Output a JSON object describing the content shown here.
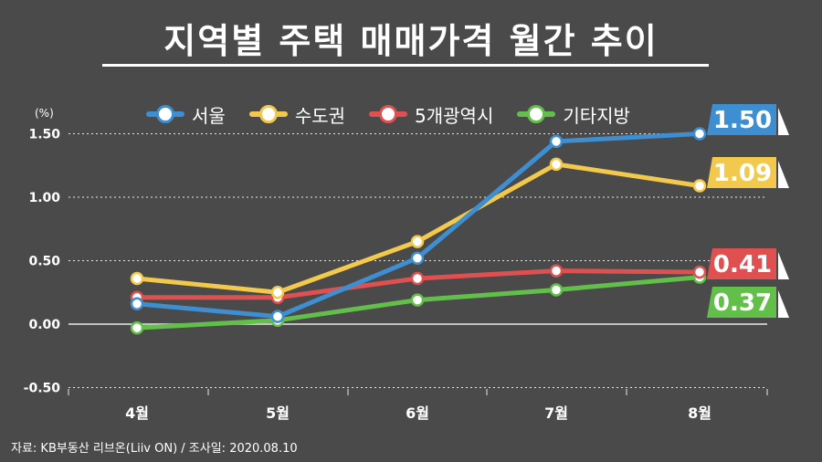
{
  "title": "지역별 주택 매매가격 월간 추이",
  "source": "자료: KB부동산 리브온(Liiv ON)  / 조사일: 2020.08.10",
  "chart_data": {
    "type": "line",
    "title": "지역별 주택 매매가격 월간 추이",
    "unit_label": "(%)",
    "categories": [
      "4월",
      "5월",
      "6월",
      "7월",
      "8월"
    ],
    "ylim": [
      -0.5,
      1.5
    ],
    "yticks": [
      "1.50",
      "1.00",
      "0.50",
      "0.00",
      "-0.50"
    ],
    "ytick_values": [
      1.5,
      1.0,
      0.5,
      0.0,
      -0.5
    ],
    "grid": true,
    "legend_position": "top",
    "series": [
      {
        "name": "서울",
        "color": "#3d8fd1",
        "values": [
          0.16,
          0.06,
          0.52,
          1.44,
          1.5
        ],
        "end_label": "1.50"
      },
      {
        "name": "수도권",
        "color": "#f2c94c",
        "values": [
          0.36,
          0.25,
          0.65,
          1.26,
          1.09
        ],
        "end_label": "1.09"
      },
      {
        "name": "5개광역시",
        "color": "#e05050",
        "values": [
          0.21,
          0.21,
          0.36,
          0.42,
          0.41
        ],
        "end_label": "0.41"
      },
      {
        "name": "기타지방",
        "color": "#62c04a",
        "values": [
          -0.03,
          0.03,
          0.19,
          0.27,
          0.37
        ],
        "end_label": "0.37"
      }
    ]
  }
}
